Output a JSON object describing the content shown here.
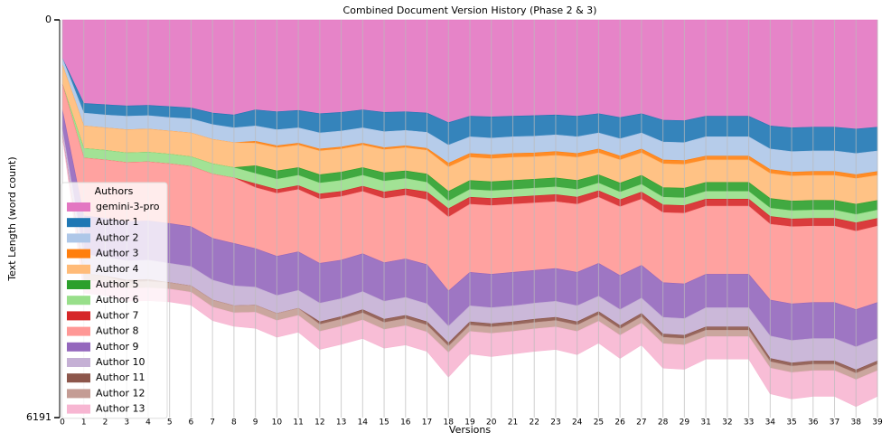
{
  "chart_data": {
    "type": "stacked_area",
    "title": "Combined Document Version History (Phase 2 & 3)",
    "x_label": "Versions",
    "y_label": "Text Length (word count)",
    "legend_title": "Authors",
    "legend_position": "lower left",
    "y_inverted": true,
    "grid": true,
    "categories": [
      "0",
      "1",
      "2",
      "3",
      "4",
      "5",
      "6",
      "7",
      "8",
      "9",
      "10",
      "11",
      "12",
      "13",
      "14",
      "15",
      "16",
      "17",
      "18",
      "19",
      "20",
      "21",
      "22",
      "23",
      "24",
      "25",
      "26",
      "27",
      "28",
      "29",
      "31",
      "32",
      "33",
      "34",
      "35",
      "36",
      "37",
      "38",
      "39"
    ],
    "ylim": [
      0,
      6191
    ],
    "yticks": [
      0,
      6191
    ],
    "series": [
      {
        "name": "gemini-3-pro",
        "color": "#e377c2",
        "values": [
          600,
          1300,
          1320,
          1340,
          1330,
          1350,
          1370,
          1450,
          1480,
          1400,
          1430,
          1410,
          1460,
          1440,
          1400,
          1440,
          1430,
          1450,
          1600,
          1500,
          1510,
          1500,
          1490,
          1480,
          1500,
          1460,
          1520,
          1460,
          1560,
          1570,
          1500,
          1500,
          1500,
          1650,
          1680,
          1670,
          1670,
          1700,
          1670
        ]
      },
      {
        "name": "Author 1",
        "color": "#1f77b4",
        "values": [
          0,
          150,
          160,
          160,
          160,
          170,
          170,
          180,
          200,
          250,
          280,
          270,
          300,
          290,
          280,
          300,
          290,
          300,
          350,
          320,
          330,
          320,
          320,
          310,
          320,
          300,
          330,
          300,
          340,
          340,
          320,
          320,
          320,
          360,
          370,
          370,
          370,
          380,
          370
        ]
      },
      {
        "name": "Author 2",
        "color": "#aec7e8",
        "values": [
          100,
          200,
          200,
          210,
          210,
          210,
          220,
          230,
          230,
          240,
          250,
          240,
          250,
          250,
          240,
          250,
          240,
          250,
          280,
          260,
          260,
          260,
          260,
          260,
          260,
          250,
          270,
          250,
          280,
          280,
          300,
          300,
          300,
          320,
          320,
          320,
          320,
          330,
          320
        ]
      },
      {
        "name": "Author 3",
        "color": "#ff7f0e",
        "values": [
          0,
          0,
          0,
          0,
          0,
          0,
          0,
          0,
          0,
          30,
          30,
          30,
          30,
          30,
          30,
          30,
          30,
          30,
          60,
          60,
          60,
          60,
          60,
          60,
          60,
          60,
          60,
          60,
          60,
          60,
          60,
          60,
          60,
          60,
          60,
          60,
          60,
          60,
          60
        ]
      },
      {
        "name": "Author 4",
        "color": "#ffbb78",
        "values": [
          300,
          350,
          350,
          360,
          360,
          360,
          370,
          380,
          390,
          350,
          360,
          350,
          370,
          360,
          350,
          360,
          360,
          370,
          380,
          360,
          360,
          360,
          350,
          350,
          360,
          340,
          360,
          350,
          370,
          370,
          350,
          350,
          350,
          390,
          390,
          390,
          390,
          400,
          390
        ]
      },
      {
        "name": "Author 5",
        "color": "#2ca02c",
        "values": [
          0,
          0,
          0,
          0,
          0,
          0,
          0,
          0,
          0,
          120,
          130,
          120,
          130,
          130,
          120,
          130,
          120,
          130,
          150,
          140,
          140,
          140,
          140,
          140,
          140,
          130,
          140,
          140,
          150,
          150,
          140,
          140,
          140,
          150,
          150,
          150,
          150,
          160,
          150
        ]
      },
      {
        "name": "Author 6",
        "color": "#98df8a",
        "values": [
          0,
          150,
          150,
          150,
          150,
          150,
          150,
          160,
          160,
          160,
          160,
          160,
          170,
          170,
          170,
          170,
          160,
          150,
          120,
          120,
          120,
          120,
          120,
          120,
          120,
          120,
          120,
          120,
          120,
          120,
          120,
          120,
          120,
          130,
          130,
          130,
          130,
          130,
          130
        ]
      },
      {
        "name": "Author 7",
        "color": "#d62728",
        "values": [
          0,
          0,
          0,
          0,
          0,
          0,
          0,
          0,
          0,
          60,
          60,
          60,
          80,
          80,
          80,
          100,
          100,
          120,
          130,
          110,
          110,
          110,
          110,
          110,
          110,
          100,
          110,
          110,
          120,
          120,
          110,
          110,
          110,
          120,
          120,
          120,
          120,
          130,
          120
        ]
      },
      {
        "name": "Author 8",
        "color": "#ff9896",
        "values": [
          400,
          900,
          910,
          920,
          920,
          930,
          940,
          1000,
          1020,
          950,
          980,
          970,
          1000,
          990,
          970,
          1000,
          990,
          1010,
          1150,
          1060,
          1070,
          1060,
          1050,
          1040,
          1060,
          1030,
          1070,
          1030,
          1090,
          1100,
          1060,
          1060,
          1060,
          1180,
          1200,
          1190,
          1190,
          1220,
          1190
        ]
      },
      {
        "name": "Author 9",
        "color": "#9467bd",
        "values": [
          300,
          600,
          600,
          610,
          610,
          620,
          620,
          650,
          660,
          600,
          610,
          600,
          620,
          600,
          590,
          600,
          600,
          610,
          550,
          520,
          520,
          520,
          510,
          510,
          520,
          510,
          530,
          510,
          540,
          540,
          520,
          520,
          520,
          560,
          570,
          560,
          560,
          580,
          560
        ]
      },
      {
        "name": "Author 10",
        "color": "#c5b0d5",
        "values": [
          100,
          300,
          300,
          300,
          300,
          300,
          300,
          310,
          310,
          280,
          280,
          280,
          290,
          280,
          280,
          280,
          280,
          280,
          260,
          250,
          250,
          250,
          250,
          250,
          250,
          240,
          250,
          240,
          260,
          260,
          300,
          300,
          300,
          350,
          350,
          350,
          350,
          360,
          350
        ]
      },
      {
        "name": "Author 11",
        "color": "#8c564b",
        "values": [
          0,
          0,
          0,
          30,
          30,
          0,
          0,
          0,
          0,
          0,
          0,
          0,
          40,
          40,
          50,
          50,
          50,
          50,
          50,
          50,
          50,
          50,
          50,
          50,
          50,
          50,
          50,
          50,
          50,
          50,
          50,
          50,
          50,
          50,
          50,
          50,
          50,
          50,
          50
        ]
      },
      {
        "name": "Author 12",
        "color": "#c49c94",
        "values": [
          0,
          100,
          100,
          100,
          100,
          100,
          100,
          110,
          110,
          110,
          110,
          110,
          110,
          110,
          110,
          110,
          110,
          110,
          100,
          100,
          100,
          100,
          100,
          100,
          100,
          100,
          100,
          100,
          100,
          100,
          100,
          100,
          100,
          100,
          100,
          100,
          100,
          100,
          100
        ]
      },
      {
        "name": "Author 13",
        "color": "#f7b6d2",
        "values": [
          0,
          200,
          200,
          200,
          200,
          200,
          200,
          210,
          210,
          250,
          260,
          260,
          280,
          280,
          290,
          290,
          300,
          300,
          380,
          350,
          360,
          350,
          350,
          350,
          360,
          340,
          360,
          340,
          380,
          380,
          350,
          350,
          350,
          400,
          410,
          400,
          400,
          420,
          400
        ]
      }
    ]
  }
}
